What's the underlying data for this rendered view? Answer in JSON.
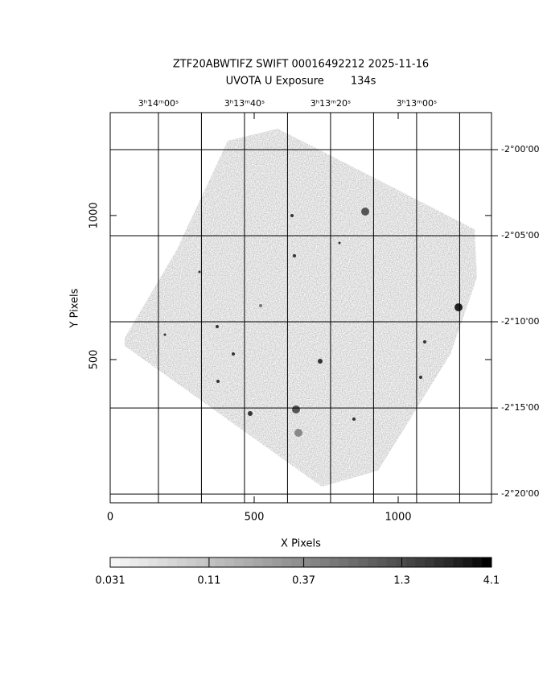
{
  "chart_data": {
    "type": "image",
    "title": "ZTF20ABWTIFZ SWIFT 00016492212 2025-11-16",
    "subtitle": "UVOTA U Exposure        134s",
    "xlabel": "X Pixels",
    "ylabel": "Y Pixels",
    "xlim": [
      0,
      1324
    ],
    "xticks": [
      0,
      500,
      1000
    ],
    "ylim": [
      3,
      1357
    ],
    "yticks": [
      500,
      1000
    ],
    "x2lim": [
      11651.2,
      11562.6
    ],
    "x2ticks": [
      {
        "value": 11640,
        "label": "3ʰ14ᵐ00ˢ"
      },
      {
        "value": 11620,
        "label": "3ʰ13ᵐ40ˢ"
      },
      {
        "value": 11600,
        "label": "3ʰ13ᵐ20ˢ"
      },
      {
        "value": 11580,
        "label": "3ʰ13ᵐ00ˢ"
      }
    ],
    "x2minor": [
      11630,
      11610,
      11590,
      11570
    ],
    "y2lim": [
      -140.51,
      -117.85
    ],
    "y2ticks": [
      {
        "value": -120,
        "label": "-2°00'00"
      },
      {
        "value": -125,
        "label": "-2°05'00"
      },
      {
        "value": -130,
        "label": "-2°10'00"
      },
      {
        "value": -135,
        "label": "-2°15'00"
      },
      {
        "value": -140,
        "label": "-2°20'00"
      }
    ],
    "grid": true,
    "colorbar": {
      "log": true,
      "clim": [
        0.031,
        4.1
      ],
      "ticks": [
        0.031,
        0.11,
        0.37,
        1.3,
        4.1
      ]
    }
  }
}
